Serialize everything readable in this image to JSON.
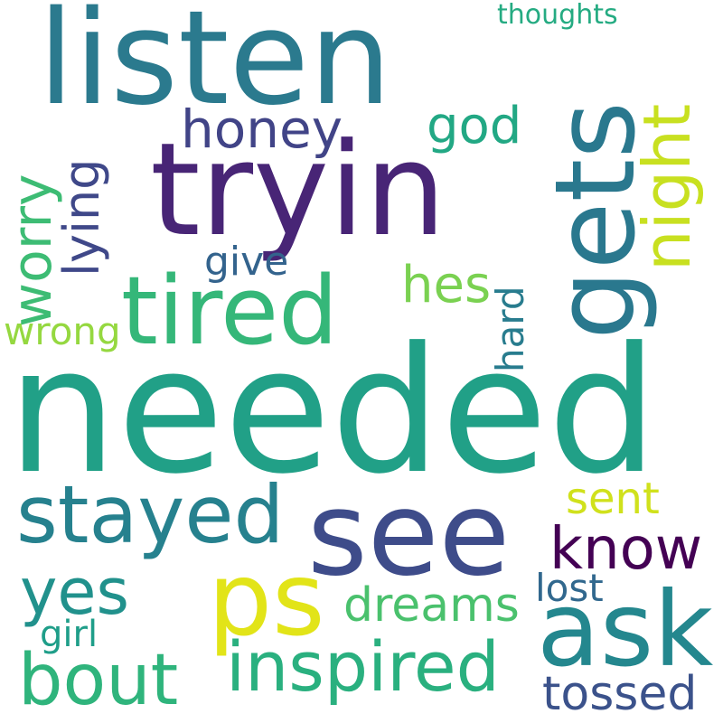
{
  "words": {
    "needed": {
      "text": "needed",
      "color": "#21a087"
    },
    "tryin": {
      "text": "tryin",
      "color": "#482576"
    },
    "listen": {
      "text": "listen",
      "color": "#2b7a8e"
    },
    "gets": {
      "text": "gets",
      "color": "#2a788e"
    },
    "see": {
      "text": "see",
      "color": "#3e4c8a"
    },
    "tired": {
      "text": "tired",
      "color": "#35b779"
    },
    "night": {
      "text": "night",
      "color": "#c8e020"
    },
    "ask": {
      "text": "ask",
      "color": "#24878e"
    },
    "ps": {
      "text": "ps",
      "color": "#e2e418"
    },
    "stayed": {
      "text": "stayed",
      "color": "#26818e"
    },
    "inspired": {
      "text": "inspired",
      "color": "#2ab07f"
    },
    "worry": {
      "text": "worry",
      "color": "#3dbc74"
    },
    "know": {
      "text": "know",
      "color": "#440154"
    },
    "bout": {
      "text": "bout",
      "color": "#2fb47c"
    },
    "honey": {
      "text": "honey",
      "color": "#414487"
    },
    "yes": {
      "text": "yes",
      "color": "#21918c"
    },
    "dreams": {
      "text": "dreams",
      "color": "#4ac16d"
    },
    "god": {
      "text": "god",
      "color": "#22a884"
    },
    "lying": {
      "text": "lying",
      "color": "#3f4889"
    },
    "hes": {
      "text": "hes",
      "color": "#7ad151"
    },
    "sent": {
      "text": "sent",
      "color": "#d0e11c"
    },
    "tossed": {
      "text": "tossed",
      "color": "#3b528b"
    },
    "hard": {
      "text": "hard",
      "color": "#287c8e"
    },
    "lost": {
      "text": "lost",
      "color": "#31688e"
    },
    "give": {
      "text": "give",
      "color": "#33638d"
    },
    "wrong": {
      "text": "wrong",
      "color": "#95d840"
    },
    "girl": {
      "text": "girl",
      "color": "#1f9e89"
    },
    "thoughts": {
      "text": "thoughts",
      "color": "#25ab82"
    }
  }
}
